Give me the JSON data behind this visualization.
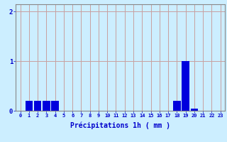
{
  "values": [
    0,
    0.2,
    0.2,
    0.2,
    0.2,
    0,
    0,
    0,
    0,
    0,
    0,
    0,
    0,
    0,
    0,
    0,
    0,
    0,
    0.2,
    1.0,
    0.05,
    0,
    0,
    0
  ],
  "categories": [
    "0",
    "1",
    "2",
    "3",
    "4",
    "5",
    "6",
    "7",
    "8",
    "9",
    "10",
    "11",
    "12",
    "13",
    "14",
    "15",
    "16",
    "17",
    "18",
    "19",
    "20",
    "21",
    "22",
    "23"
  ],
  "xlabel": "Précipitations 1h ( mm )",
  "bar_color": "#0000dd",
  "bg_color": "#cceeff",
  "grid_color": "#c8a0a0",
  "axis_color": "#0000cc",
  "tick_color": "#0000cc",
  "ylim": [
    0,
    2.15
  ],
  "yticks": [
    0,
    1,
    2
  ]
}
